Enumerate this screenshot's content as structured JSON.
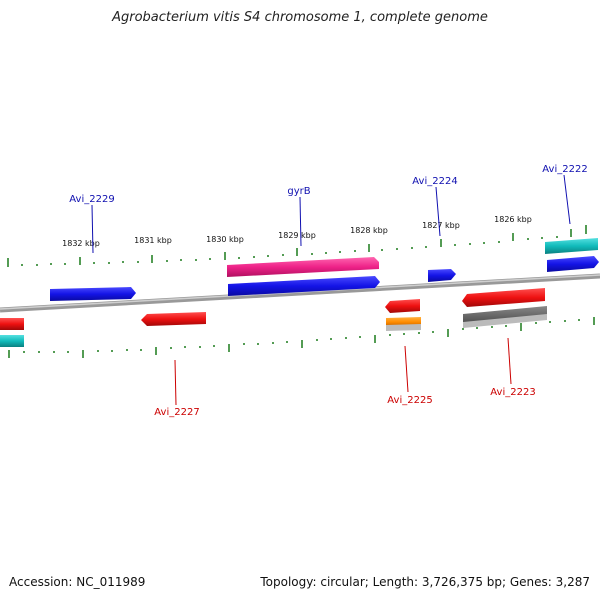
{
  "title": "Agrobacterium vitis S4 chromosome 1, complete genome",
  "footer": {
    "accession": "Accession: NC_011989",
    "summary": "Topology: circular; Length: 3,726,375 bp; Genes: 3,287"
  },
  "colors": {
    "backbone": "#8a8a8a",
    "tick": "#1a7a1a",
    "label_top": "#1010b0",
    "label_bottom": "#cc0000",
    "blue": "#1414e6",
    "red": "#ee1111",
    "pink": "#ee2288",
    "cyan": "#11bbbb",
    "orange": "#ff8c00",
    "gray": "#666666"
  },
  "scale_labels": [
    "1832 kbp",
    "1831 kbp",
    "1830 kbp",
    "1829 kbp",
    "1828 kbp",
    "1827 kbp",
    "1826 kbp"
  ],
  "gene_labels_top": [
    "Avi_2229",
    "gyrB",
    "Avi_2224",
    "Avi_2222"
  ],
  "gene_labels_bottom": [
    "Avi_2227",
    "Avi_2225",
    "Avi_2223"
  ]
}
